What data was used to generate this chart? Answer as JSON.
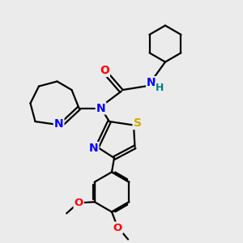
{
  "background_color": "#ebebeb",
  "atom_colors": {
    "C": "#000000",
    "N": "#0000ff",
    "O": "#ff0000",
    "S": "#ccaa00",
    "H": "#008080"
  },
  "bond_color": "#000000",
  "bond_width": 1.6,
  "font_size_atom": 10,
  "title": ""
}
